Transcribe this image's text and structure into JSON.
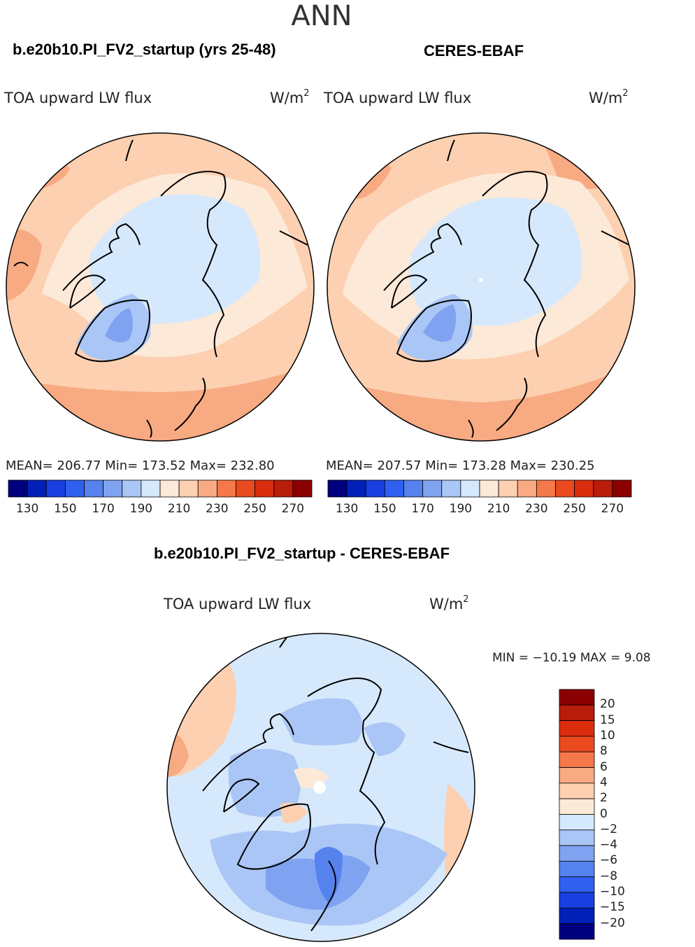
{
  "figure": {
    "season": "ANN",
    "model_case": "b.e20b10.PI_FV2_startup (yrs 25-48)",
    "obs_case": "CERES-EBAF",
    "diff_title": "b.e20b10.PI_FV2_startup - CERES-EBAF"
  },
  "panels": {
    "model": {
      "variable": "TOA upward LW flux",
      "units": "W/m",
      "units_exp": "2",
      "stats": "MEAN= 206.77   Min= 173.52   Max= 232.80"
    },
    "obs": {
      "variable": "TOA upward LW flux",
      "units": "W/m",
      "units_exp": "2",
      "stats": "MEAN= 207.57   Min= 173.28   Max= 230.25"
    },
    "diff": {
      "variable": "TOA upward LW flux",
      "units": "W/m",
      "units_exp": "2",
      "minmax": "MIN = −10.19  MAX =    9.08"
    }
  },
  "chart_data": [
    {
      "type": "heatmap",
      "projection": "north polar stereographic",
      "title": "b.e20b10.PI_FV2_startup (yrs 25-48)",
      "variable": "TOA upward LW flux",
      "units": "W/m2",
      "mean": 206.77,
      "min": 173.52,
      "max": 232.8,
      "colorbar": {
        "levels": [
          130,
          140,
          150,
          160,
          170,
          180,
          190,
          200,
          210,
          220,
          230,
          240,
          250,
          260,
          270
        ],
        "tick_labels": [
          "130",
          "150",
          "170",
          "190",
          "210",
          "230",
          "250",
          "270"
        ],
        "colors": [
          "#00007f",
          "#0020b8",
          "#1a3ee0",
          "#3060f0",
          "#5682ee",
          "#7fa3f0",
          "#aac6f6",
          "#d6e8fb",
          "#fde9d8",
          "#fcd0b0",
          "#f8aa82",
          "#f4784a",
          "#ea4a20",
          "#da2d0e",
          "#b81c0a",
          "#8a0000"
        ]
      }
    },
    {
      "type": "heatmap",
      "projection": "north polar stereographic",
      "title": "CERES-EBAF",
      "variable": "TOA upward LW flux",
      "units": "W/m2",
      "mean": 207.57,
      "min": 173.28,
      "max": 230.25,
      "colorbar": {
        "levels": [
          130,
          140,
          150,
          160,
          170,
          180,
          190,
          200,
          210,
          220,
          230,
          240,
          250,
          260,
          270
        ],
        "tick_labels": [
          "130",
          "150",
          "170",
          "190",
          "210",
          "230",
          "250",
          "270"
        ],
        "colors": [
          "#00007f",
          "#0020b8",
          "#1a3ee0",
          "#3060f0",
          "#5682ee",
          "#7fa3f0",
          "#aac6f6",
          "#d6e8fb",
          "#fde9d8",
          "#fcd0b0",
          "#f8aa82",
          "#f4784a",
          "#ea4a20",
          "#da2d0e",
          "#b81c0a",
          "#8a0000"
        ]
      }
    },
    {
      "type": "heatmap",
      "projection": "north polar stereographic",
      "title": "b.e20b10.PI_FV2_startup - CERES-EBAF",
      "variable": "TOA upward LW flux",
      "units": "W/m2",
      "min": -10.19,
      "max": 9.08,
      "colorbar": {
        "levels": [
          20,
          15,
          10,
          8,
          6,
          4,
          2,
          0,
          -2,
          -4,
          -6,
          -8,
          -10,
          -15,
          -20
        ],
        "tick_labels": [
          "20",
          "15",
          "10",
          "8",
          "6",
          "4",
          "2",
          "0",
          "−2",
          "−4",
          "−6",
          "−8",
          "−10",
          "−15",
          "−20"
        ],
        "colors": [
          "#8a0000",
          "#b81c0a",
          "#da2d0e",
          "#ea4a20",
          "#f4784a",
          "#f8aa82",
          "#fcd0b0",
          "#fde9d8",
          "#d6e8fb",
          "#aac6f6",
          "#7fa3f0",
          "#5682ee",
          "#3060f0",
          "#1a3ee0",
          "#0020b8",
          "#00007f"
        ]
      }
    }
  ]
}
